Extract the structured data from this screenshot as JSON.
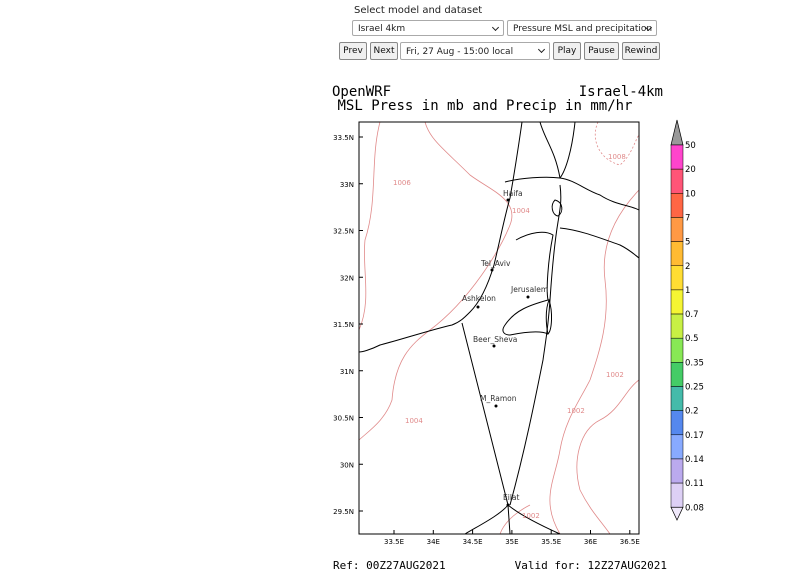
{
  "controls": {
    "label": "Select model and dataset",
    "model": "Israel 4km",
    "dataset": "Pressure MSL and precipitation",
    "buttons": [
      "Prev",
      "Next"
    ],
    "time": "Fri, 27 Aug - 15:00 local",
    "playback": [
      "Play",
      "Pause",
      "Rewind"
    ]
  },
  "map": {
    "source": "OpenWRF",
    "domain": "Israel-4km",
    "title": "MSL Press in mb and Precip in mm/hr",
    "lat_labels": [
      "33.5N",
      "33N",
      "32.5N",
      "32N",
      "31.5N",
      "31N",
      "30.5N",
      "30N",
      "29.5N"
    ],
    "lon_labels": [
      "33.5E",
      "34E",
      "34.5E",
      "35E",
      "35.5E",
      "36E",
      "36.5E"
    ],
    "cities": [
      "Haifa",
      "Tel_Aviv",
      "Jerusalem",
      "Ashkelon",
      "Beer_Sheva",
      "M_Ramon",
      "Eilat"
    ],
    "contour_labels": [
      "1008",
      "1006",
      "1004",
      "1004",
      "1002",
      "1002",
      "1002"
    ],
    "colorbar_labels": [
      "50",
      "20",
      "10",
      "7",
      "5",
      "2",
      "1",
      "0.7",
      "0.5",
      "0.35",
      "0.25",
      "0.2",
      "0.17",
      "0.14",
      "0.11",
      "0.08"
    ]
  },
  "footer": {
    "ref": "Ref: 00Z27AUG2021",
    "valid": "Valid for: 12Z27AUG2021"
  }
}
